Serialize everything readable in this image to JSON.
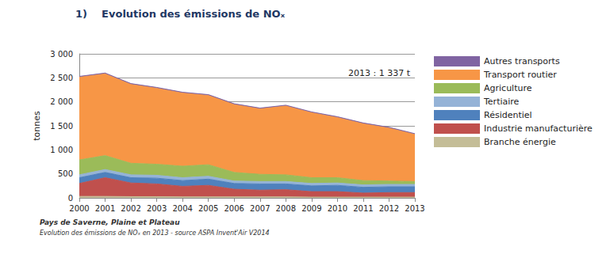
{
  "chart_data": {
    "type": "area",
    "title": "1)    Evolution des émissions de NOₓ",
    "y_label": "tonnes",
    "annotations": [
      "2013 : 1 337 t"
    ],
    "footer": [
      "Pays de Saverne, Plaine et Plateau",
      "Evolution des émissions de NOₓ en 2013 - source ASPA Invent'Air V2014"
    ],
    "categories": [
      "2000",
      "2001",
      "2002",
      "2003",
      "2004",
      "2005",
      "2006",
      "2007",
      "2008",
      "2009",
      "2010",
      "2011",
      "2012",
      "2013"
    ],
    "series": [
      {
        "name": "Branche énergie",
        "color": "#c4bd97",
        "values": [
          30,
          30,
          25,
          25,
          20,
          20,
          20,
          20,
          20,
          15,
          15,
          15,
          15,
          15
        ]
      },
      {
        "name": "Industrie manufacturière",
        "color": "#c0504d",
        "values": [
          270,
          390,
          285,
          265,
          220,
          240,
          160,
          140,
          150,
          115,
          115,
          85,
          95,
          95
        ]
      },
      {
        "name": "Résidentiel",
        "color": "#4f81bd",
        "values": [
          120,
          110,
          110,
          120,
          120,
          130,
          120,
          130,
          120,
          120,
          130,
          120,
          120,
          120
        ]
      },
      {
        "name": "Tertiaire",
        "color": "#95b3d7",
        "values": [
          60,
          60,
          60,
          60,
          60,
          60,
          50,
          50,
          50,
          50,
          50,
          50,
          50,
          50
        ]
      },
      {
        "name": "Agriculture",
        "color": "#9bbb59",
        "values": [
          310,
          290,
          240,
          230,
          240,
          240,
          180,
          150,
          140,
          120,
          110,
          90,
          70,
          60
        ]
      },
      {
        "name": "Transport routier",
        "color": "#f79646",
        "values": [
          1725,
          1705,
          1645,
          1585,
          1525,
          1445,
          1415,
          1365,
          1435,
          1355,
          1255,
          1185,
          1105,
          982
        ]
      },
      {
        "name": "Autres transports",
        "color": "#8064a2",
        "values": [
          15,
          15,
          15,
          15,
          15,
          15,
          15,
          15,
          15,
          15,
          15,
          15,
          15,
          15
        ]
      }
    ],
    "ylim": [
      0,
      3000
    ],
    "yticks": [
      0,
      500,
      {
        "value": 1000,
        "label": "1 000"
      },
      {
        "value": 1500,
        "label": "1 500"
      },
      {
        "value": 2000,
        "label": "2 000"
      },
      {
        "value": 2500,
        "label": "2 500"
      },
      {
        "value": 3000,
        "label": "3 000"
      }
    ],
    "stacked": true,
    "grid": true,
    "legend": "right"
  }
}
